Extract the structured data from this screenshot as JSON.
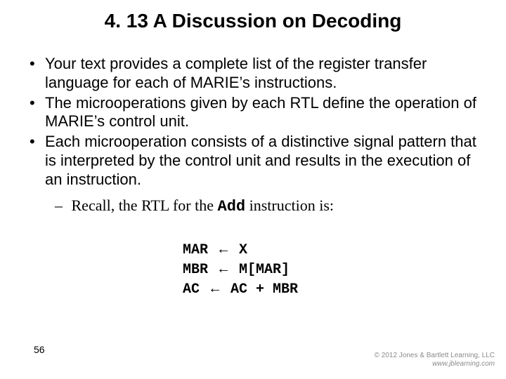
{
  "title": "4. 13 A Discussion on Decoding",
  "bullets": [
    "Your text provides a complete list of the register transfer language for each of MARIE’s instructions.",
    "The microoperations given by each RTL define the operation of MARIE’s control unit.",
    "Each microoperation consists of a distinctive signal pattern that is interpreted by the control unit and results in the execution of an instruction."
  ],
  "sub_prefix": "Recall, the RTL for the ",
  "sub_code": "Add",
  "sub_suffix": " instruction is:",
  "rtl": {
    "l1_left": "MAR ",
    "l1_right": " X",
    "l2_left": "MBR ",
    "l2_right": " M[MAR]",
    "l3_left": "AC ",
    "l3_right": " AC + MBR"
  },
  "dot": "•",
  "dash": "–",
  "arrow": "←",
  "page": "56",
  "copyright_line1": "© 2012 Jones & Bartlett Learning, LLC",
  "copyright_line2": "www.jblearning.com",
  "colors": {
    "background": "#ffffff",
    "text": "#000000",
    "copyright": "#8a8a8a"
  },
  "fontsizes": {
    "title": 28,
    "body": 22,
    "rtl": 20,
    "pagenum": 14,
    "copyright": 10
  }
}
